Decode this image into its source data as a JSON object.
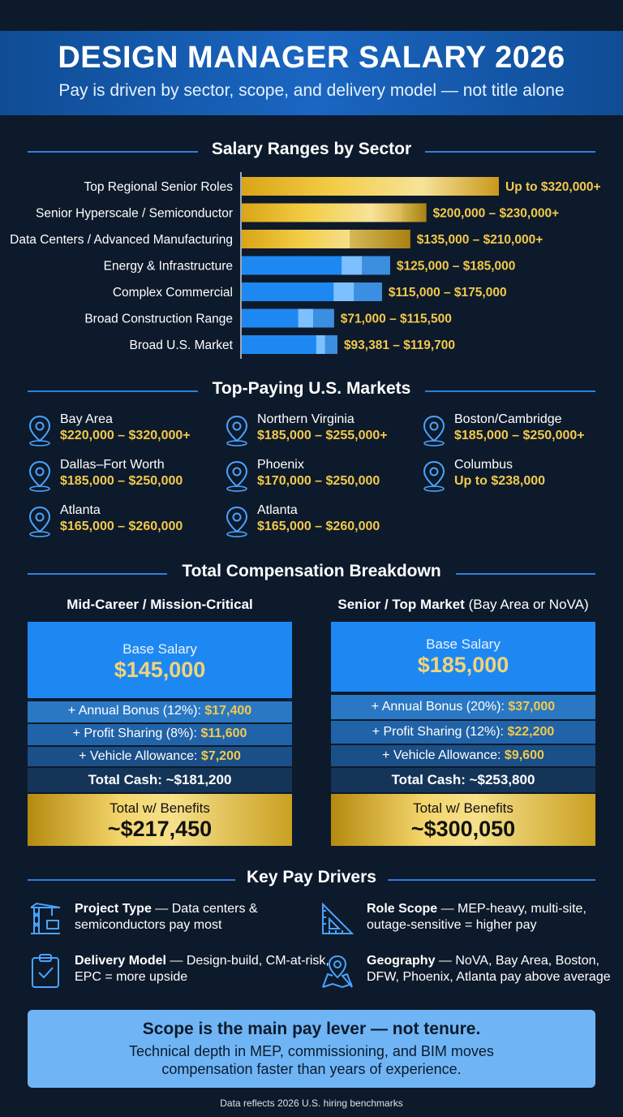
{
  "header": {
    "title": "DESIGN MANAGER SALARY 2026",
    "subtitle": "Pay is driven by sector, scope, and delivery model — not title alone"
  },
  "sections": {
    "sector": "Salary Ranges by Sector",
    "markets": "Top-Paying U.S. Markets",
    "comp": "Total Compensation Breakdown",
    "drivers": "Key Pay Drivers"
  },
  "colors": {
    "gold": "#f2c94c",
    "blue": "#1e88f2",
    "light_blue": "#7cc0ff",
    "background": "#0d1a2b"
  },
  "chart_data": {
    "type": "bar",
    "orientation": "horizontal",
    "categories": [
      "Top Regional Senior Roles",
      "Senior Hyperscale / Semiconductor",
      "Data Centers / Advanced Manufacturing",
      "Energy & Infrastructure",
      "Complex Commercial",
      "Broad Construction Range",
      "Broad U.S. Market"
    ],
    "series": [
      {
        "low": [
          null,
          200000,
          135000,
          125000,
          115000,
          71000,
          93381
        ],
        "high": [
          320000,
          230000,
          210000,
          185000,
          175000,
          115500,
          119700
        ],
        "labels": [
          "Up to $320,000+",
          "$200,000 – $230,000+",
          "$135,000 – $210,000+",
          "$125,000 – $185,000",
          "$115,000 – $175,000",
          "$71,000 – $115,500",
          "$93,381 – $119,700"
        ],
        "tier": [
          "gold",
          "gold",
          "gold",
          "blue",
          "blue",
          "blue",
          "blue"
        ]
      }
    ],
    "xlim": [
      0,
      330000
    ]
  },
  "markets": [
    {
      "city": "Bay Area",
      "range": "$220,000 – $320,000+"
    },
    {
      "city": "Northern Virginia",
      "range": "$185,000 – $255,000+"
    },
    {
      "city": "Boston/Cambridge",
      "range": "$185,000 – $250,000+"
    },
    {
      "city": "Dallas–Fort Worth",
      "range": "$185,000 – $250,000"
    },
    {
      "city": "Phoenix",
      "range": "$170,000 – $250,000"
    },
    {
      "city": "Columbus",
      "range": "Up to $238,000"
    },
    {
      "city": "Atlanta",
      "range": "$165,000 – $260,000"
    },
    {
      "city": "Atlanta",
      "range": "$165,000 – $260,000"
    }
  ],
  "comp": {
    "mid": {
      "title": "Mid-Career / Mission-Critical",
      "base_label": "Base Salary",
      "base_value": "$145,000",
      "bonus_label": "+ Annual Bonus (12%):",
      "bonus_value": "$17,400",
      "profit_label": "+ Profit Sharing (8%):",
      "profit_value": "$11,600",
      "vehicle_label": "+ Vehicle Allowance:",
      "vehicle_value": "$7,200",
      "total_cash": "Total Cash: ~$181,200",
      "benefits_label": "Total w/ Benefits",
      "benefits_value": "~$217,450"
    },
    "senior": {
      "title": "Senior / Top Market",
      "title_suffix": "(Bay Area or NoVA)",
      "base_label": "Base Salary",
      "base_value": "$185,000",
      "bonus_label": "+ Annual Bonus (20%):",
      "bonus_value": "$37,000",
      "profit_label": "+ Profit Sharing (12%):",
      "profit_value": "$22,200",
      "vehicle_label": "+ Vehicle Allowance:",
      "vehicle_value": "$9,600",
      "total_cash": "Total Cash: ~$253,800",
      "benefits_label": "Total w/ Benefits",
      "benefits_value": "~$300,050"
    }
  },
  "drivers": [
    {
      "icon": "crane-icon",
      "name": "Project Type",
      "desc": " — Data centers & semiconductors pay most"
    },
    {
      "icon": "set-square-icon",
      "name": "Role Scope",
      "desc": " — MEP-heavy, multi-site, outage-sensitive = higher pay"
    },
    {
      "icon": "clipboard-check-icon",
      "name": "Delivery Model",
      "desc": " — Design-build, CM-at-risk, EPC = more upside"
    },
    {
      "icon": "map-pin-icon",
      "name": "Geography",
      "desc": " — NoVA, Bay Area, Boston, DFW, Phoenix, Atlanta pay above average"
    }
  ],
  "callout": {
    "headline": "Scope is the main pay lever — not tenure.",
    "line1": "Technical depth in MEP, commissioning, and BIM moves",
    "line2": "compensation faster than years of experience."
  },
  "footnote": "Data reflects 2026 U.S. hiring benchmarks"
}
